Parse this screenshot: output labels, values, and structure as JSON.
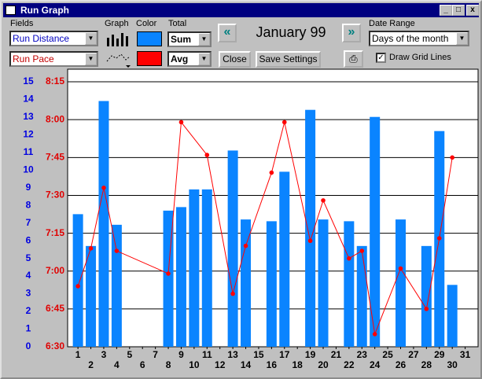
{
  "window": {
    "title": "Run Graph",
    "fields_label": "Fields",
    "graph_label": "Graph",
    "color_label": "Color",
    "total_label": "Total",
    "period": "January 99",
    "close_button": "Close",
    "save_button": "Save Settings",
    "date_range_label": "Date Range",
    "date_range": "Days of the month",
    "grid_checkbox": "Draw Grid Lines"
  },
  "chart_data": {
    "type": "bar_line",
    "xlim": [
      0.2,
      32
    ],
    "xticks": [
      1,
      2,
      3,
      4,
      5,
      6,
      7,
      8,
      9,
      10,
      11,
      12,
      13,
      14,
      15,
      16,
      17,
      18,
      19,
      20,
      21,
      22,
      23,
      24,
      25,
      26,
      27,
      28,
      29,
      30,
      31
    ],
    "ylim": [
      0,
      15.7
    ],
    "yticks": [
      0,
      1,
      2,
      3,
      4,
      5,
      6,
      7,
      8,
      9,
      10,
      11,
      12,
      13,
      14,
      15
    ],
    "y2lim": [
      390,
      500
    ],
    "y2ticks": [
      {
        "value": 390,
        "label": "6:30"
      },
      {
        "value": 405,
        "label": "6:45"
      },
      {
        "value": 420,
        "label": "7:00"
      },
      {
        "value": 435,
        "label": "7:15"
      },
      {
        "value": 450,
        "label": "7:30"
      },
      {
        "value": 465,
        "label": "7:45"
      },
      {
        "value": 480,
        "label": "8:00"
      },
      {
        "value": 495,
        "label": "8:15"
      }
    ],
    "grid": true,
    "series": [
      {
        "name": "Run Distance",
        "type": "bar",
        "color": "#0a84ff",
        "total": "Sum",
        "x": [
          1,
          2,
          3,
          4,
          8,
          9,
          10,
          11,
          13,
          14,
          16,
          17,
          19,
          20,
          22,
          23,
          24,
          26,
          28,
          29,
          30
        ],
        "values": [
          7.5,
          5.7,
          13.9,
          6.9,
          7.7,
          7.9,
          8.9,
          8.9,
          11.1,
          7.2,
          7.1,
          9.9,
          13.4,
          7.2,
          7.1,
          5.7,
          13.0,
          7.2,
          5.7,
          12.2,
          3.5
        ]
      },
      {
        "name": "Run Pace",
        "type": "line",
        "axis": "y2",
        "color": "#ff0000",
        "total": "Avg",
        "x": [
          1,
          2,
          3,
          4,
          8,
          9,
          11,
          13,
          14,
          16,
          17,
          19,
          20,
          22,
          23,
          24,
          26,
          28,
          29,
          30
        ],
        "values": [
          414,
          429,
          453,
          428,
          419,
          479,
          466,
          411,
          430,
          459,
          479,
          432,
          448,
          425,
          428,
          395,
          421,
          405,
          433,
          465
        ]
      }
    ]
  }
}
